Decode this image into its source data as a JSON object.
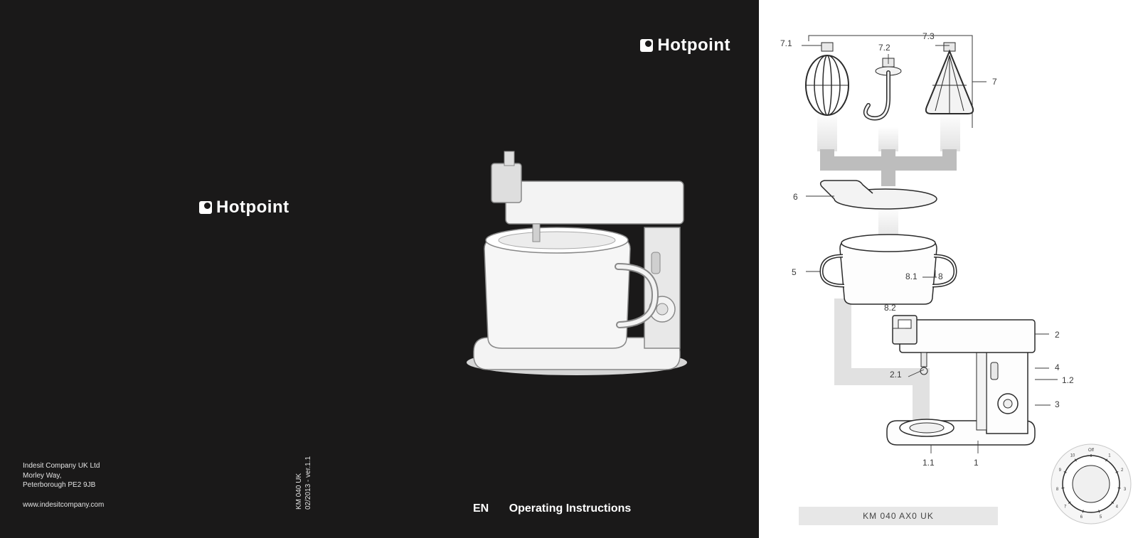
{
  "brand": "Hotpoint",
  "company": {
    "line1": "Indesit Company UK Ltd",
    "line2": "Morley Way,",
    "line3": "Peterborough PE2 9JB",
    "website": "www.indesitcompany.com"
  },
  "doc_meta": {
    "line1": "KM 040 UK",
    "line2": "02/2013 - ver.1.1"
  },
  "instructions": {
    "lang": "EN",
    "title": "Operating Instructions"
  },
  "diagram": {
    "model": "KM 040 AX0 UK",
    "callouts": {
      "c7_1": "7.1",
      "c7_2": "7.2",
      "c7_3": "7.3",
      "c7": "7",
      "c6": "6",
      "c5": "5",
      "c8_1": "8.1",
      "c8": "8",
      "c8_2": "8.2",
      "c2": "2",
      "c2_1": "2.1",
      "c4": "4",
      "c1_2": "1.2",
      "c3": "3",
      "c1_1": "1.1",
      "c1": "1"
    },
    "dial_labels": [
      "Off",
      "1",
      "2",
      "3",
      "4",
      "5",
      "6",
      "7",
      "8",
      "9",
      "10"
    ]
  },
  "colors": {
    "dark_bg": "#1a1919",
    "light_bg": "#ffffff",
    "stroke": "#2b2b2b",
    "illust_fill": "#f3f3f3",
    "illust_shadow": "#d0d0d0",
    "shade": "#e1e1e1",
    "label_bg": "#e7e7e7",
    "text_light": "#e2e2e2",
    "text_dark": "#3a3a3a"
  }
}
